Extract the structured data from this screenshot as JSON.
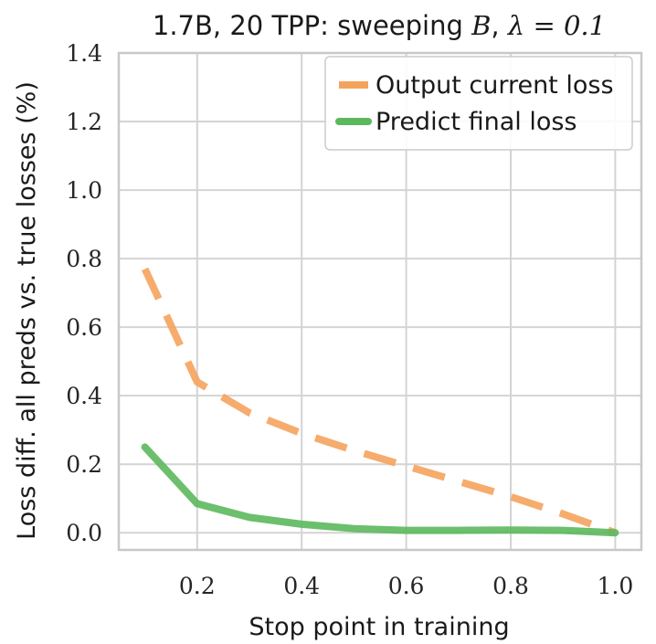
{
  "chart_data": {
    "type": "line",
    "title_text": "1.7B, 20 TPP: sweeping ",
    "title_var": "B",
    "title_sep": ", ",
    "title_lambda": "λ = 0.1",
    "xlabel": "Stop point in training",
    "ylabel": "Loss diff. all preds vs. true losses (%)",
    "xlim": [
      0.05,
      1.05
    ],
    "ylim": [
      -0.05,
      1.4
    ],
    "x_ticks": [
      "0.2",
      "0.4",
      "0.6",
      "0.8",
      "1.0"
    ],
    "y_ticks": [
      "0.0",
      "0.2",
      "0.4",
      "0.6",
      "0.8",
      "1.0",
      "1.2",
      "1.4"
    ],
    "grid": true,
    "legend_position": "top-right",
    "series": [
      {
        "name": "Output current loss",
        "color": "#f5a35c",
        "style": "dashed",
        "x": [
          0.1,
          0.2,
          0.3,
          0.4,
          0.5,
          0.6,
          0.7,
          0.8,
          0.9,
          1.0
        ],
        "y": [
          0.77,
          0.44,
          0.35,
          0.29,
          0.24,
          0.195,
          0.15,
          0.105,
          0.055,
          0.0
        ]
      },
      {
        "name": "Predict final loss",
        "color": "#5cb85c",
        "style": "solid",
        "x": [
          0.1,
          0.2,
          0.3,
          0.4,
          0.5,
          0.6,
          0.7,
          0.8,
          0.9,
          1.0
        ],
        "y": [
          0.25,
          0.085,
          0.045,
          0.025,
          0.012,
          0.007,
          0.007,
          0.008,
          0.007,
          0.0
        ]
      }
    ]
  }
}
